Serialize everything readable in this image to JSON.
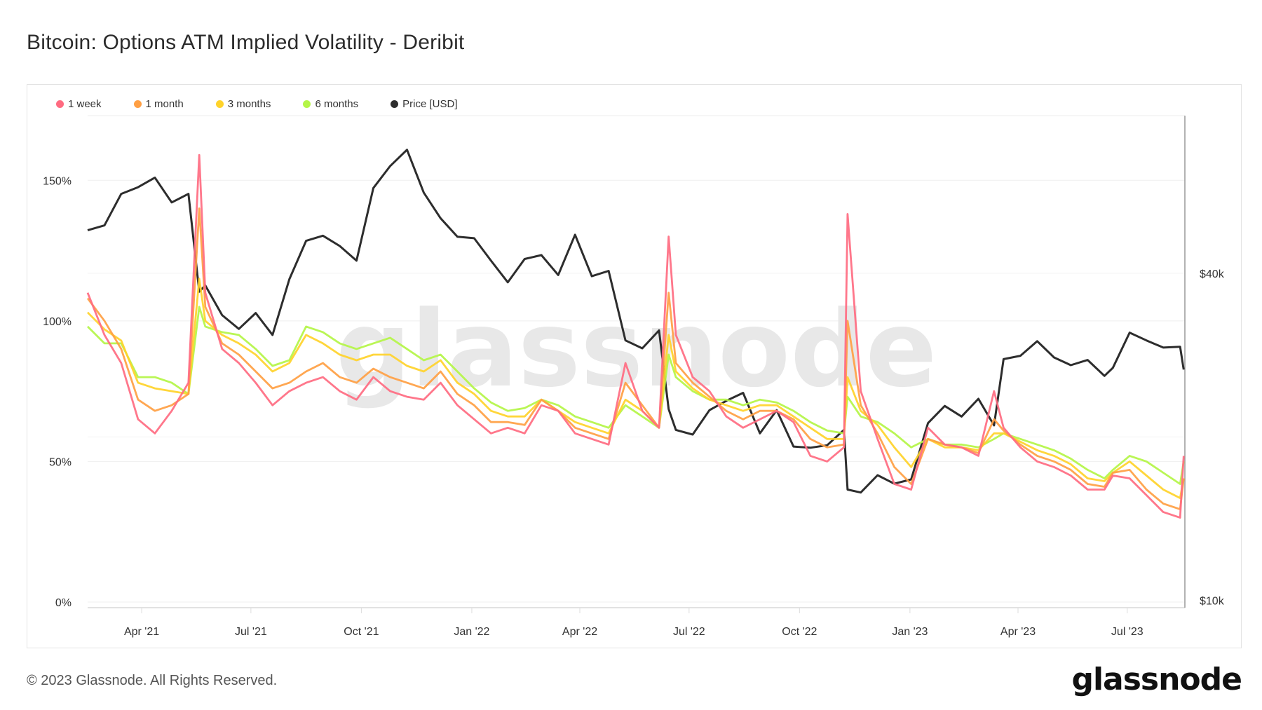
{
  "title": "Bitcoin: Options ATM Implied Volatility - Deribit",
  "footer": {
    "copyright": "© 2023 Glassnode. All Rights Reserved.",
    "logo": "glassnode",
    "watermark": "glassnode"
  },
  "chart_data": {
    "type": "line",
    "title": "Bitcoin: Options ATM Implied Volatility - Deribit",
    "legend_placement": "top-left",
    "grid": true,
    "y_left": {
      "ticks": [
        0,
        50,
        100,
        150
      ],
      "tick_labels": [
        "0%",
        "50%",
        "100%",
        "150%"
      ],
      "range": [
        -2,
        173
      ]
    },
    "y_right": {
      "scale": "log",
      "ticks": [
        10000,
        40000
      ],
      "tick_labels": [
        "$10k",
        "$40k"
      ],
      "range": [
        9700,
        78000
      ]
    },
    "x_range": [
      "2021-02-15",
      "2023-08-18"
    ],
    "x_ticks": [
      {
        "date": "2021-04-01",
        "label": "Apr '21"
      },
      {
        "date": "2021-07-01",
        "label": "Jul '21"
      },
      {
        "date": "2021-10-01",
        "label": "Oct '21"
      },
      {
        "date": "2022-01-01",
        "label": "Jan '22"
      },
      {
        "date": "2022-04-01",
        "label": "Apr '22"
      },
      {
        "date": "2022-07-01",
        "label": "Jul '22"
      },
      {
        "date": "2022-10-01",
        "label": "Oct '22"
      },
      {
        "date": "2023-01-01",
        "label": "Jan '23"
      },
      {
        "date": "2023-04-01",
        "label": "Apr '23"
      },
      {
        "date": "2023-07-01",
        "label": "Jul '23"
      }
    ],
    "x": [
      "2021-02-15",
      "2021-03-01",
      "2021-03-15",
      "2021-03-29",
      "2021-04-12",
      "2021-04-26",
      "2021-05-10",
      "2021-05-19",
      "2021-05-24",
      "2021-06-07",
      "2021-06-21",
      "2021-07-05",
      "2021-07-19",
      "2021-08-02",
      "2021-08-16",
      "2021-08-30",
      "2021-09-13",
      "2021-09-27",
      "2021-10-11",
      "2021-10-25",
      "2021-11-08",
      "2021-11-22",
      "2021-12-06",
      "2021-12-20",
      "2022-01-03",
      "2022-01-17",
      "2022-01-31",
      "2022-02-14",
      "2022-02-28",
      "2022-03-14",
      "2022-03-28",
      "2022-04-11",
      "2022-04-25",
      "2022-05-09",
      "2022-05-23",
      "2022-06-06",
      "2022-06-14",
      "2022-06-20",
      "2022-07-04",
      "2022-07-18",
      "2022-08-01",
      "2022-08-15",
      "2022-08-29",
      "2022-09-12",
      "2022-09-26",
      "2022-10-10",
      "2022-10-24",
      "2022-11-07",
      "2022-11-10",
      "2022-11-21",
      "2022-12-05",
      "2022-12-19",
      "2023-01-02",
      "2023-01-16",
      "2023-01-30",
      "2023-02-13",
      "2023-02-27",
      "2023-03-12",
      "2023-03-20",
      "2023-04-03",
      "2023-04-17",
      "2023-05-01",
      "2023-05-15",
      "2023-05-29",
      "2023-06-12",
      "2023-06-19",
      "2023-07-03",
      "2023-07-17",
      "2023-07-31",
      "2023-08-14",
      "2023-08-17"
    ],
    "series": [
      {
        "name": "1 week",
        "axis": "left",
        "color": "#ff6b81",
        "values": [
          110,
          95,
          85,
          65,
          60,
          68,
          78,
          159,
          110,
          90,
          85,
          78,
          70,
          75,
          78,
          80,
          75,
          72,
          80,
          75,
          73,
          72,
          78,
          70,
          65,
          60,
          62,
          60,
          70,
          68,
          60,
          58,
          56,
          85,
          68,
          62,
          130,
          95,
          80,
          75,
          66,
          62,
          65,
          68,
          64,
          52,
          50,
          55,
          138,
          75,
          58,
          42,
          40,
          62,
          56,
          55,
          52,
          75,
          62,
          55,
          50,
          48,
          45,
          40,
          40,
          45,
          44,
          38,
          32,
          30,
          52
        ]
      },
      {
        "name": "1 month",
        "axis": "left",
        "color": "#ff9f43",
        "values": [
          108,
          100,
          90,
          72,
          68,
          70,
          74,
          140,
          105,
          92,
          88,
          82,
          76,
          78,
          82,
          85,
          80,
          78,
          83,
          80,
          78,
          76,
          82,
          74,
          70,
          64,
          64,
          63,
          72,
          68,
          62,
          60,
          58,
          78,
          70,
          62,
          110,
          85,
          78,
          73,
          68,
          65,
          68,
          68,
          65,
          58,
          55,
          56,
          100,
          70,
          60,
          48,
          42,
          58,
          56,
          55,
          53,
          65,
          61,
          56,
          52,
          50,
          47,
          42,
          41,
          46,
          47,
          40,
          35,
          33,
          44
        ]
      },
      {
        "name": "3 months",
        "axis": "left",
        "color": "#ffd32a",
        "values": [
          103,
          97,
          93,
          78,
          76,
          75,
          74,
          115,
          100,
          95,
          92,
          88,
          82,
          85,
          95,
          92,
          88,
          86,
          88,
          88,
          84,
          82,
          86,
          78,
          74,
          68,
          66,
          66,
          72,
          68,
          64,
          62,
          60,
          72,
          68,
          62,
          95,
          82,
          76,
          72,
          70,
          68,
          70,
          70,
          66,
          62,
          58,
          58,
          80,
          68,
          63,
          55,
          48,
          58,
          55,
          55,
          54,
          60,
          60,
          57,
          54,
          52,
          49,
          44,
          43,
          46,
          50,
          45,
          40,
          37,
          44
        ]
      },
      {
        "name": "6 months",
        "axis": "left",
        "color": "#b4f547",
        "values": [
          98,
          92,
          92,
          80,
          80,
          78,
          74,
          105,
          98,
          96,
          95,
          90,
          84,
          86,
          98,
          96,
          92,
          90,
          92,
          94,
          90,
          86,
          88,
          82,
          76,
          71,
          68,
          69,
          72,
          70,
          66,
          64,
          62,
          70,
          66,
          62,
          88,
          80,
          75,
          72,
          72,
          70,
          72,
          71,
          68,
          64,
          61,
          60,
          73,
          66,
          64,
          60,
          55,
          58,
          56,
          56,
          55,
          58,
          60,
          58,
          56,
          54,
          51,
          47,
          44,
          47,
          52,
          50,
          46,
          42,
          50
        ]
      },
      {
        "name": "Price [USD]",
        "axis": "right",
        "color": "#2d2d2d",
        "values": [
          48000,
          49000,
          56000,
          57600,
          60000,
          54000,
          56000,
          37000,
          38000,
          33500,
          31600,
          33800,
          30800,
          39000,
          45900,
          46900,
          44900,
          42200,
          57400,
          63000,
          67500,
          56300,
          50500,
          46700,
          46400,
          42200,
          38500,
          42500,
          43200,
          39700,
          47100,
          39500,
          40400,
          30100,
          29100,
          31400,
          22500,
          20600,
          20200,
          22400,
          23300,
          24100,
          20300,
          22400,
          19200,
          19100,
          19300,
          20600,
          16000,
          15800,
          17000,
          16400,
          16700,
          21200,
          22800,
          21800,
          23500,
          21000,
          27800,
          28200,
          30000,
          28000,
          27100,
          27700,
          25900,
          26800,
          31100,
          30100,
          29200,
          29300,
          26600
        ]
      }
    ]
  }
}
